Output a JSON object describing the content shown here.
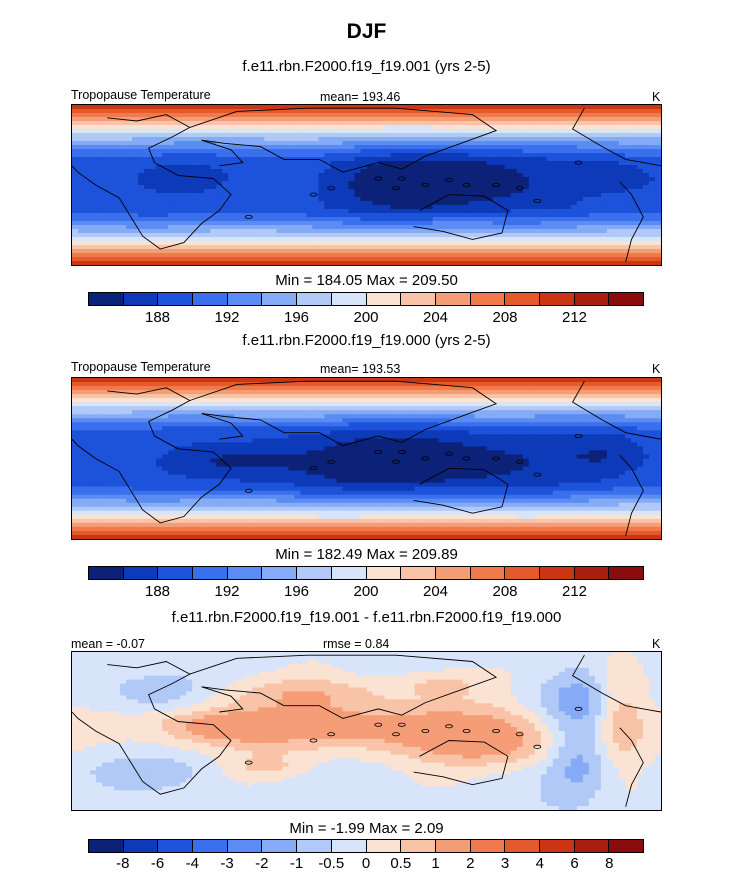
{
  "figure": {
    "title": "DJF"
  },
  "chart_data": [
    {
      "type": "heatmap",
      "case": "f.e11.rbn.F2000.f19_f19.001 (yrs 2-5)",
      "left_label": "Tropopause Temperature",
      "center_label": "mean= 193.46",
      "right_label": "K",
      "mean": 193.46,
      "min": 184.05,
      "max": 209.5,
      "minmax_text": "Min = 184.05 Max = 209.50",
      "colorbar_ticks": [
        "188",
        "192",
        "196",
        "200",
        "204",
        "208",
        "212"
      ],
      "field": {
        "base": [
          212,
          210,
          207,
          204,
          201,
          199,
          197,
          195,
          193,
          191,
          190,
          189,
          189,
          189,
          189,
          189,
          189,
          189,
          189,
          189,
          189,
          190,
          191,
          193,
          195,
          197,
          199,
          201,
          204,
          207,
          210,
          212
        ],
        "blobs": [
          {
            "lon": 0.66,
            "lat": 0.47,
            "w": 0.12,
            "h": 0.14,
            "amp": -4.5
          },
          {
            "lon": 0.56,
            "lat": 0.52,
            "w": 0.08,
            "h": 0.12,
            "amp": -2.5
          },
          {
            "lon": 0.19,
            "lat": 0.46,
            "w": 0.06,
            "h": 0.06,
            "amp": -2.2
          },
          {
            "lon": 0.93,
            "lat": 0.46,
            "w": 0.05,
            "h": 0.06,
            "amp": -2.2
          }
        ]
      }
    },
    {
      "type": "heatmap",
      "case": "f.e11.rbn.F2000.f19_f19.000 (yrs 2-5)",
      "left_label": "Tropopause Temperature",
      "center_label": "mean= 193.53",
      "right_label": "K",
      "mean": 193.53,
      "min": 182.49,
      "max": 209.89,
      "minmax_text": "Min = 182.49 Max = 209.89",
      "colorbar_ticks": [
        "188",
        "192",
        "196",
        "200",
        "204",
        "208",
        "212"
      ],
      "field": {
        "base": [
          212,
          210,
          207,
          204,
          201,
          199,
          197,
          195,
          193,
          191,
          190,
          189,
          189,
          189,
          189,
          189,
          189,
          189,
          189,
          189,
          189,
          190,
          191,
          193,
          195,
          197,
          199,
          201,
          204,
          207,
          210,
          212
        ],
        "blobs": [
          {
            "lon": 0.58,
            "lat": 0.52,
            "w": 0.18,
            "h": 0.14,
            "amp": -5.0
          },
          {
            "lon": 0.28,
            "lat": 0.52,
            "w": 0.07,
            "h": 0.06,
            "amp": -2.5
          },
          {
            "lon": 0.91,
            "lat": 0.48,
            "w": 0.05,
            "h": 0.08,
            "amp": -2.0
          }
        ]
      }
    },
    {
      "type": "heatmap",
      "case": "f.e11.rbn.F2000.f19_f19.001 - f.e11.rbn.F2000.f19_f19.000",
      "left_label": "mean =  -0.07",
      "center_label": "rmse =   0.84",
      "right_label": "K",
      "mean": -0.07,
      "rmse": 0.84,
      "min": -1.99,
      "max": 2.09,
      "minmax_text": "Min =  -1.99 Max =   2.09",
      "colorbar_ticks": [
        "-8",
        "-6",
        "-4",
        "-3",
        "-2",
        "-1",
        "-0.5",
        "0",
        "0.5",
        "1",
        "2",
        "3",
        "4",
        "6",
        "8"
      ],
      "field": {
        "base": [
          -0.2
        ],
        "blobs": [
          {
            "lon": 0.5,
            "lat": 0.47,
            "w": 0.22,
            "h": 0.12,
            "amp": 1.6
          },
          {
            "lon": 0.24,
            "lat": 0.47,
            "w": 0.07,
            "h": 0.07,
            "amp": 1.0
          },
          {
            "lon": 0.4,
            "lat": 0.25,
            "w": 0.1,
            "h": 0.07,
            "amp": 0.8
          },
          {
            "lon": 0.62,
            "lat": 0.2,
            "w": 0.06,
            "h": 0.06,
            "amp": 0.7
          },
          {
            "lon": 0.72,
            "lat": 0.6,
            "w": 0.1,
            "h": 0.1,
            "amp": 1.0
          },
          {
            "lon": 0.93,
            "lat": 0.35,
            "w": 0.03,
            "h": 0.25,
            "amp": 1.1
          },
          {
            "lon": 0.86,
            "lat": 0.6,
            "w": 0.04,
            "h": 0.25,
            "amp": -1.2
          },
          {
            "lon": 0.13,
            "lat": 0.25,
            "w": 0.06,
            "h": 0.08,
            "amp": -0.7
          },
          {
            "lon": 0.86,
            "lat": 0.3,
            "w": 0.07,
            "h": 0.1,
            "amp": -0.6
          },
          {
            "lon": 0.12,
            "lat": 0.76,
            "w": 0.08,
            "h": 0.07,
            "amp": -0.6
          },
          {
            "lon": 0.33,
            "lat": 0.73,
            "w": 0.05,
            "h": 0.05,
            "amp": 0.6
          }
        ]
      }
    }
  ],
  "colorbars": {
    "absolute": {
      "levels": [
        186,
        188,
        190,
        192,
        194,
        196,
        198,
        200,
        202,
        204,
        206,
        208,
        210,
        212,
        214
      ],
      "colors": [
        "#0c2278",
        "#0d3ab9",
        "#1d53db",
        "#3a6fed",
        "#5b8cf4",
        "#86abf6",
        "#b1c9f6",
        "#d7e4f9",
        "#fbe3d3",
        "#f8c3a6",
        "#f59d77",
        "#f07a4c",
        "#e45a2c",
        "#cc3514",
        "#a91f0f",
        "#8a0c0c"
      ]
    },
    "difference": {
      "levels": [
        -8,
        -6,
        -4,
        -3,
        -2,
        -1,
        -0.5,
        0,
        0.5,
        1,
        2,
        3,
        4,
        6,
        8
      ],
      "colors": [
        "#0c2278",
        "#0d3ab9",
        "#1d53db",
        "#3a6fed",
        "#5b8cf4",
        "#86abf6",
        "#b1c9f6",
        "#d7e4f9",
        "#fbe3d3",
        "#f8c3a6",
        "#f59d77",
        "#f07a4c",
        "#e45a2c",
        "#cc3514",
        "#a91f0f",
        "#8a0c0c"
      ]
    }
  }
}
